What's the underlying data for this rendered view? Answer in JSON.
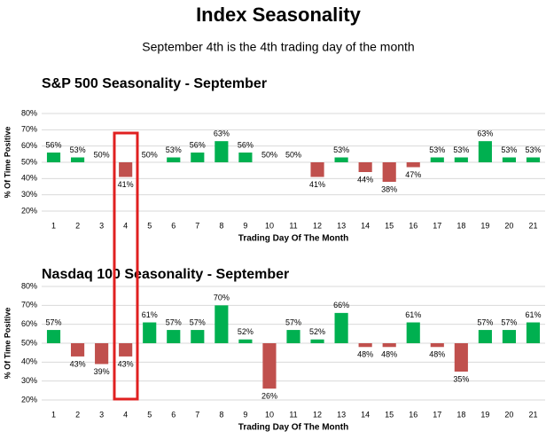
{
  "title": "Index Seasonality",
  "subtitle": "September 4th is the 4th trading day of the month",
  "chart_data": [
    {
      "type": "bar",
      "title": "S&P 500 Seasonality - September",
      "x_label": "Trading Day Of The Month",
      "y_label": "% Of Time Positive",
      "categories": [
        "1",
        "2",
        "3",
        "4",
        "5",
        "6",
        "7",
        "8",
        "9",
        "10",
        "11",
        "12",
        "13",
        "14",
        "15",
        "16",
        "17",
        "18",
        "19",
        "20",
        "21"
      ],
      "values": [
        56,
        53,
        50,
        41,
        50,
        53,
        56,
        63,
        56,
        50,
        50,
        41,
        53,
        44,
        38,
        47,
        53,
        53,
        63,
        53,
        53
      ],
      "value_labels": [
        "56%",
        "53%",
        "50%",
        "41%",
        "50%",
        "53%",
        "56%",
        "63%",
        "56%",
        "50%",
        "50%",
        "41%",
        "53%",
        "44%",
        "38%",
        "47%",
        "53%",
        "53%",
        "63%",
        "53%",
        "53%"
      ],
      "baseline": 50,
      "positive_color": "#00b050",
      "negative_color": "#c0504d",
      "ylim": [
        20,
        80
      ],
      "yticks": [
        {
          "value": 20,
          "label": "20%"
        },
        {
          "value": 30,
          "label": "30%"
        },
        {
          "value": 40,
          "label": "40%"
        },
        {
          "value": 50,
          "label": "50%"
        },
        {
          "value": 60,
          "label": "60%"
        },
        {
          "value": 70,
          "label": "70%"
        },
        {
          "value": 80,
          "label": "80%"
        }
      ],
      "grid": true
    },
    {
      "type": "bar",
      "title": "Nasdaq 100 Seasonality - September",
      "x_label": "Trading Day Of The Month",
      "y_label": "% Of Time Positive",
      "categories": [
        "1",
        "2",
        "3",
        "4",
        "5",
        "6",
        "7",
        "8",
        "9",
        "10",
        "11",
        "12",
        "13",
        "14",
        "15",
        "16",
        "17",
        "18",
        "19",
        "20",
        "21"
      ],
      "values": [
        57,
        43,
        39,
        43,
        61,
        57,
        57,
        70,
        52,
        26,
        57,
        52,
        66,
        48,
        48,
        61,
        48,
        35,
        57,
        57,
        61
      ],
      "value_labels": [
        "57%",
        "43%",
        "39%",
        "43%",
        "61%",
        "57%",
        "57%",
        "70%",
        "52%",
        "26%",
        "57%",
        "52%",
        "66%",
        "48%",
        "48%",
        "61%",
        "48%",
        "35%",
        "57%",
        "57%",
        "61%"
      ],
      "baseline": 50,
      "positive_color": "#00b050",
      "negative_color": "#c0504d",
      "ylim": [
        20,
        80
      ],
      "yticks": [
        {
          "value": 20,
          "label": "20%"
        },
        {
          "value": 30,
          "label": "30%"
        },
        {
          "value": 40,
          "label": "40%"
        },
        {
          "value": 50,
          "label": "50%"
        },
        {
          "value": 60,
          "label": "60%"
        },
        {
          "value": 70,
          "label": "70%"
        },
        {
          "value": 80,
          "label": "80%"
        }
      ],
      "grid": true
    }
  ]
}
